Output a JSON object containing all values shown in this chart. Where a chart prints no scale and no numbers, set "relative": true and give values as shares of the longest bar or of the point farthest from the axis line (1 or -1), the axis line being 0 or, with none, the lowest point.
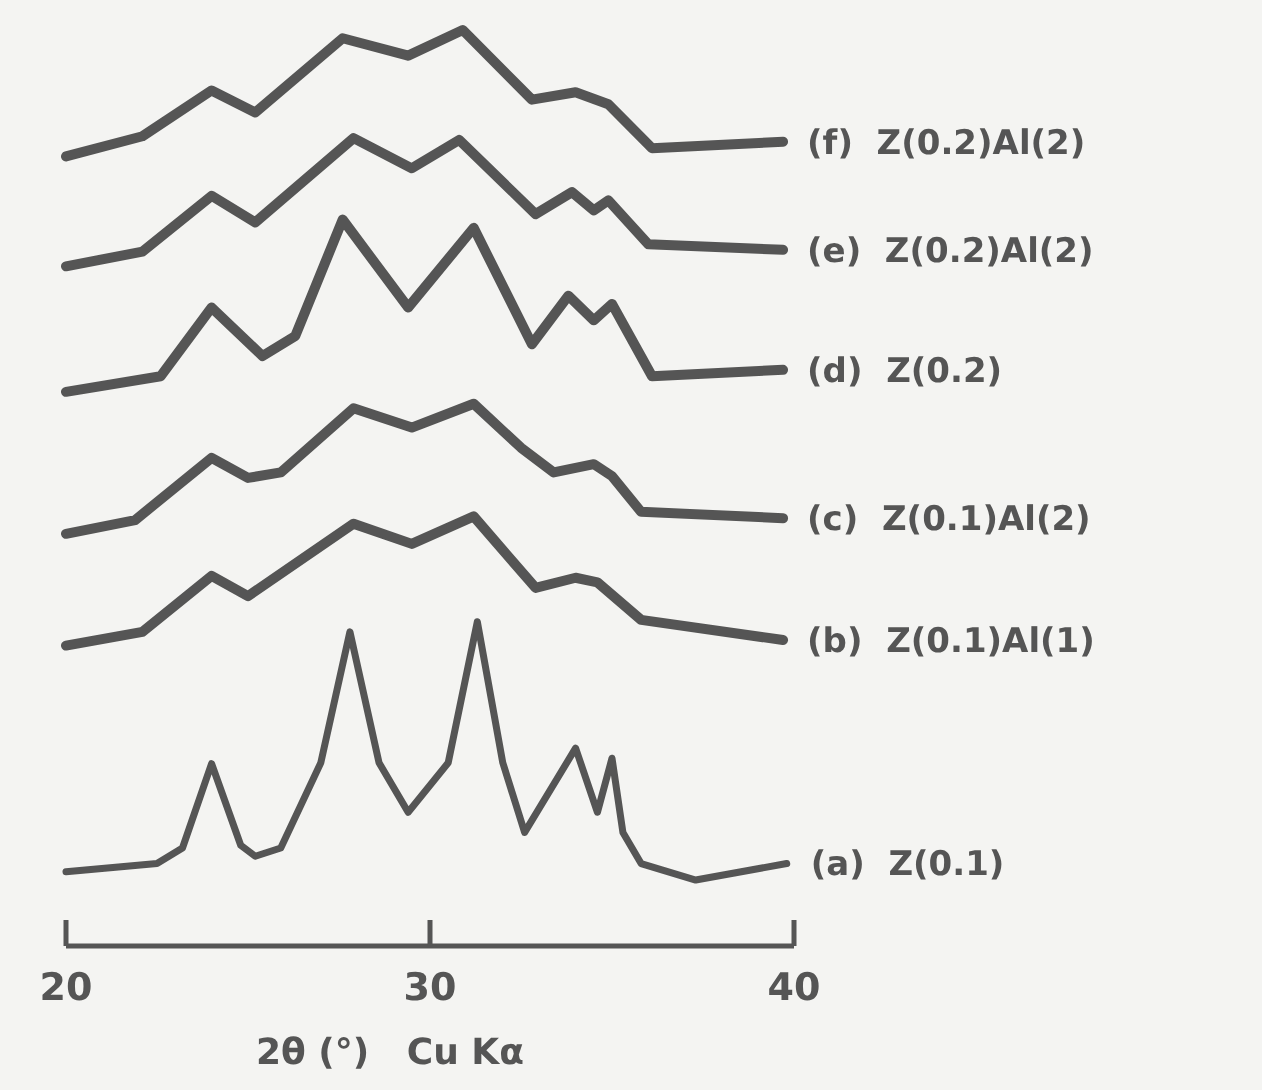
{
  "chart_data": {
    "type": "line",
    "relative": true,
    "xlabel": "2θ (°)   Cu Kα",
    "xlim": [
      20,
      40
    ],
    "xticks": [
      20,
      30,
      40
    ],
    "grid": false,
    "line_style": "solid",
    "series": [
      {
        "name": "(a)  Z(0.1)",
        "color": "#555555",
        "x": [
          20,
          22.5,
          23.2,
          24.0,
          24.8,
          25.2,
          25.9,
          27.0,
          27.8,
          28.6,
          29.4,
          30.5,
          31.3,
          32.0,
          32.6,
          34.0,
          34.6,
          35.0,
          35.3,
          35.8,
          37.3,
          39.8
        ],
        "values": [
          0.081,
          0.09,
          0.107,
          0.199,
          0.11,
          0.098,
          0.107,
          0.2,
          0.343,
          0.2,
          0.146,
          0.2,
          0.354,
          0.2,
          0.124,
          0.216,
          0.146,
          0.205,
          0.124,
          0.09,
          0.072,
          0.09
        ]
      },
      {
        "name": "(b)  Z(0.1)Al(1)",
        "color": "#555555",
        "x": [
          20.0,
          22.1,
          24.0,
          25.0,
          27.9,
          29.5,
          31.2,
          32.9,
          34.0,
          34.6,
          35.8,
          39.7
        ],
        "values": [
          0.328,
          0.343,
          0.404,
          0.382,
          0.461,
          0.439,
          0.469,
          0.391,
          0.402,
          0.397,
          0.356,
          0.334
        ]
      },
      {
        "name": "(c)  Z(0.1)Al(2)",
        "color": "#555555",
        "x": [
          20.0,
          21.9,
          24.0,
          25.0,
          25.9,
          27.9,
          29.5,
          31.2,
          32.5,
          33.4,
          34.5,
          35.0,
          35.8,
          39.7
        ],
        "values": [
          0.45,
          0.465,
          0.533,
          0.511,
          0.517,
          0.587,
          0.566,
          0.592,
          0.544,
          0.517,
          0.526,
          0.513,
          0.474,
          0.467
        ]
      },
      {
        "name": "(d)  Z(0.2)",
        "color": "#555555",
        "x": [
          20.0,
          22.6,
          24.0,
          25.4,
          26.3,
          27.6,
          29.4,
          31.2,
          32.8,
          33.8,
          34.5,
          35.0,
          36.1,
          39.7
        ],
        "values": [
          0.605,
          0.622,
          0.697,
          0.644,
          0.666,
          0.793,
          0.697,
          0.784,
          0.657,
          0.71,
          0.683,
          0.701,
          0.622,
          0.629
        ]
      },
      {
        "name": "(e)  Z(0.2)Al(2)",
        "color": "#555555",
        "x": [
          20.0,
          22.1,
          24.0,
          25.2,
          27.9,
          29.5,
          30.8,
          32.9,
          33.9,
          34.5,
          34.9,
          36.0,
          39.7
        ],
        "values": [
          0.742,
          0.758,
          0.819,
          0.79,
          0.882,
          0.849,
          0.88,
          0.799,
          0.823,
          0.803,
          0.814,
          0.766,
          0.76
        ]
      },
      {
        "name": "(f)  Z(0.2)Al(2)",
        "color": "#555555",
        "x": [
          20.0,
          22.1,
          24.0,
          25.2,
          27.6,
          29.4,
          30.9,
          32.8,
          34.0,
          34.9,
          36.1,
          39.7
        ],
        "values": [
          0.862,
          0.884,
          0.934,
          0.91,
          0.991,
          0.972,
          1,
          0.924,
          0.932,
          0.919,
          0.871,
          0.878
        ]
      }
    ]
  }
}
